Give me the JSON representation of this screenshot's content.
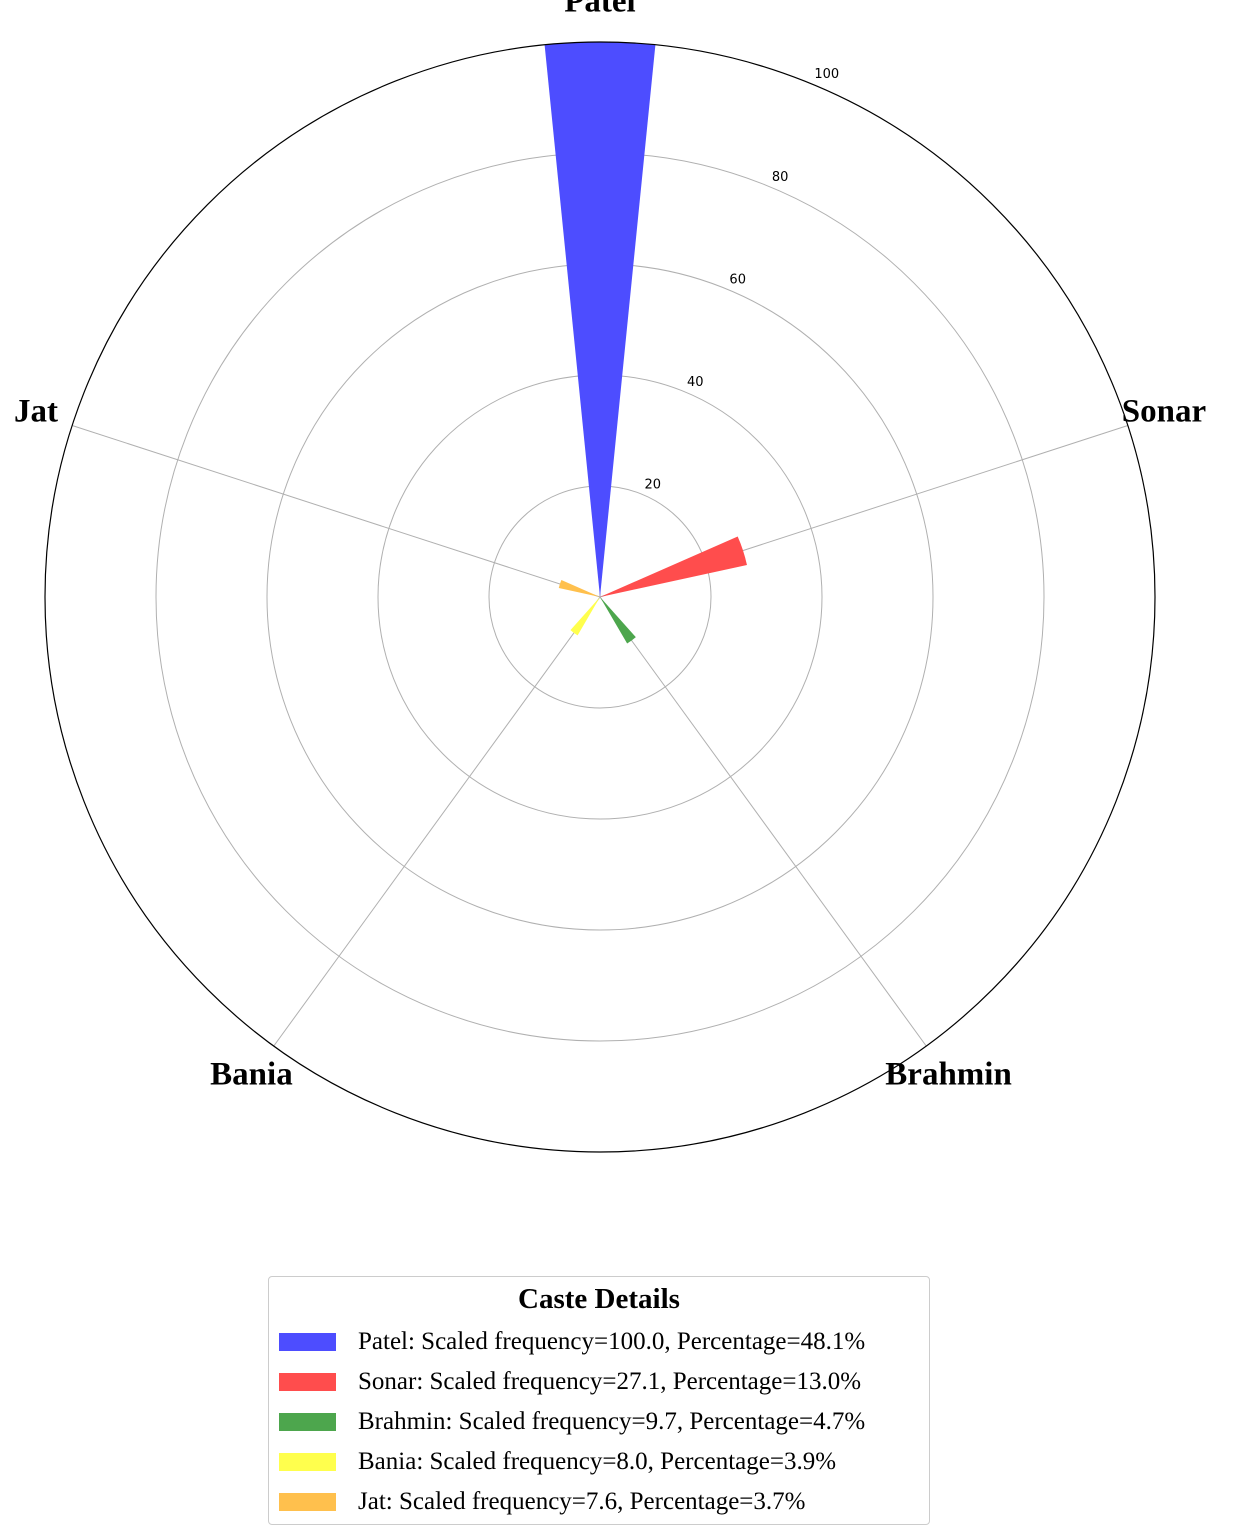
{
  "chart_data": {
    "type": "polar-bar",
    "categories": [
      "Patel",
      "Sonar",
      "Brahmin",
      "Bania",
      "Jat"
    ],
    "values": [
      100.0,
      27.1,
      9.7,
      8.0,
      7.6
    ],
    "percentages": [
      48.1,
      13.0,
      4.7,
      3.9,
      3.7
    ],
    "colors": [
      "#4d4dff",
      "#ff4d4d",
      "#4da64d",
      "#ffff4d",
      "#ffc04d"
    ],
    "radial_ticks": [
      "20",
      "40",
      "60",
      "80",
      "100"
    ],
    "rlim": [
      0,
      100
    ],
    "grid": true
  },
  "legend": {
    "title": "Caste Details",
    "items": [
      "Patel: Scaled frequency=100.0, Percentage=48.1%",
      "Sonar: Scaled frequency=27.1, Percentage=13.0%",
      "Brahmin: Scaled frequency=9.7, Percentage=4.7%",
      "Bania: Scaled frequency=8.0, Percentage=3.9%",
      "Jat: Scaled frequency=7.6, Percentage=3.7%"
    ]
  }
}
